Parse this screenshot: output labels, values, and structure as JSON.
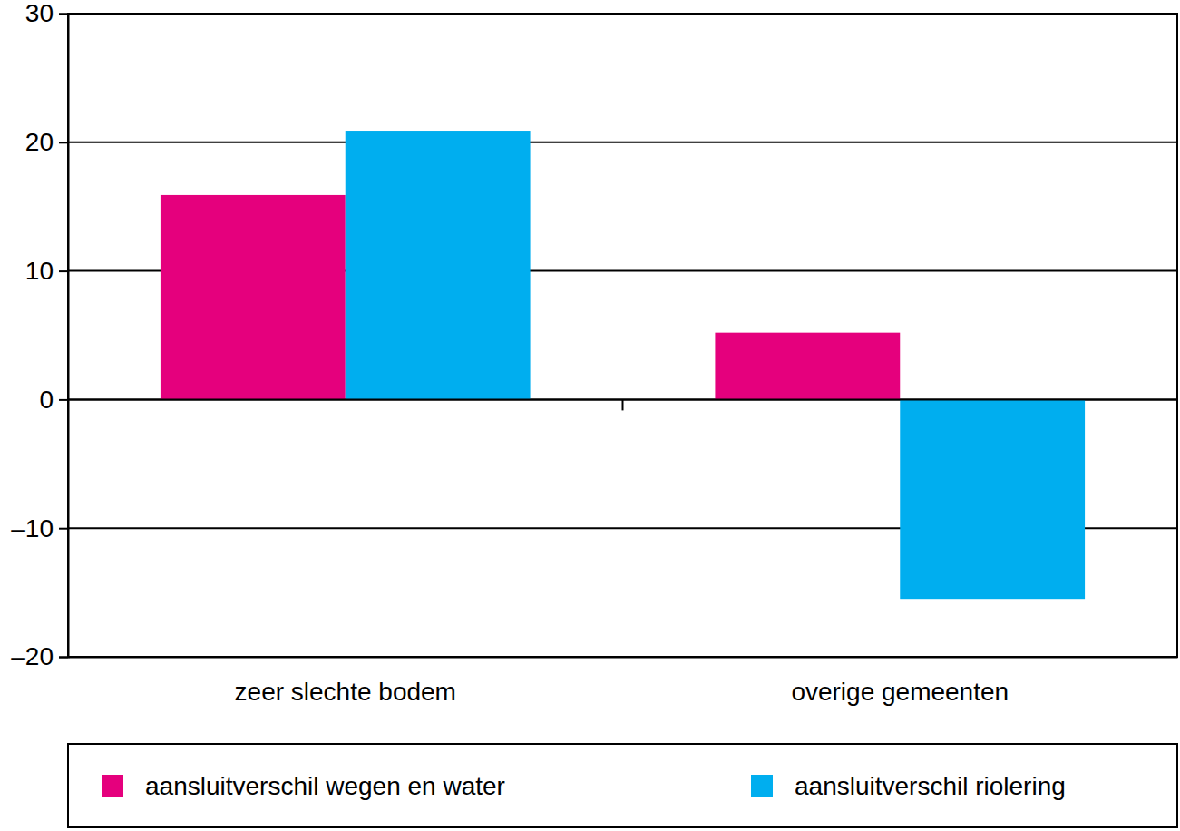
{
  "chart_data": {
    "type": "bar",
    "categories": [
      "zeer slechte bodem",
      "overige gemeenten"
    ],
    "series": [
      {
        "name": "aansluitverschil wegen en water",
        "color": "#e5007d",
        "values": [
          15.9,
          5.2
        ]
      },
      {
        "name": "aansluitverschil riolering",
        "color": "#00aeef",
        "values": [
          20.9,
          -15.5
        ]
      }
    ],
    "ylim": [
      -20,
      30
    ],
    "yticks": [
      {
        "value": -20,
        "label": "–20"
      },
      {
        "value": -10,
        "label": "–10"
      },
      0,
      10,
      20,
      30
    ],
    "grid": true,
    "legend": "bottom"
  }
}
